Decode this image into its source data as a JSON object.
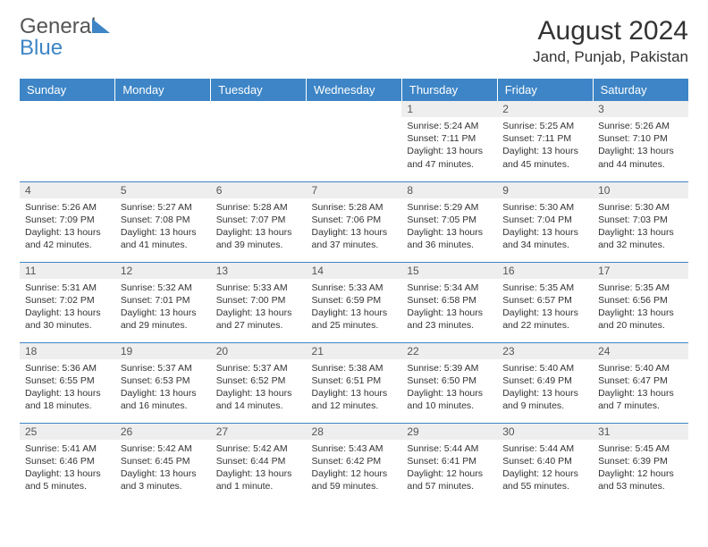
{
  "brand": {
    "part1": "General",
    "part2": "Blue"
  },
  "title": "August 2024",
  "location": "Jand, Punjab, Pakistan",
  "colors": {
    "header_bg": "#3d85c6",
    "header_fg": "#ffffff",
    "daynum_bg": "#eeeeee",
    "border": "#3d85c6",
    "text": "#333333"
  },
  "weekdays": [
    "Sunday",
    "Monday",
    "Tuesday",
    "Wednesday",
    "Thursday",
    "Friday",
    "Saturday"
  ],
  "weeks": [
    [
      {
        "n": "",
        "sr": "",
        "ss": "",
        "dl": ""
      },
      {
        "n": "",
        "sr": "",
        "ss": "",
        "dl": ""
      },
      {
        "n": "",
        "sr": "",
        "ss": "",
        "dl": ""
      },
      {
        "n": "",
        "sr": "",
        "ss": "",
        "dl": ""
      },
      {
        "n": "1",
        "sr": "Sunrise: 5:24 AM",
        "ss": "Sunset: 7:11 PM",
        "dl": "Daylight: 13 hours and 47 minutes."
      },
      {
        "n": "2",
        "sr": "Sunrise: 5:25 AM",
        "ss": "Sunset: 7:11 PM",
        "dl": "Daylight: 13 hours and 45 minutes."
      },
      {
        "n": "3",
        "sr": "Sunrise: 5:26 AM",
        "ss": "Sunset: 7:10 PM",
        "dl": "Daylight: 13 hours and 44 minutes."
      }
    ],
    [
      {
        "n": "4",
        "sr": "Sunrise: 5:26 AM",
        "ss": "Sunset: 7:09 PM",
        "dl": "Daylight: 13 hours and 42 minutes."
      },
      {
        "n": "5",
        "sr": "Sunrise: 5:27 AM",
        "ss": "Sunset: 7:08 PM",
        "dl": "Daylight: 13 hours and 41 minutes."
      },
      {
        "n": "6",
        "sr": "Sunrise: 5:28 AM",
        "ss": "Sunset: 7:07 PM",
        "dl": "Daylight: 13 hours and 39 minutes."
      },
      {
        "n": "7",
        "sr": "Sunrise: 5:28 AM",
        "ss": "Sunset: 7:06 PM",
        "dl": "Daylight: 13 hours and 37 minutes."
      },
      {
        "n": "8",
        "sr": "Sunrise: 5:29 AM",
        "ss": "Sunset: 7:05 PM",
        "dl": "Daylight: 13 hours and 36 minutes."
      },
      {
        "n": "9",
        "sr": "Sunrise: 5:30 AM",
        "ss": "Sunset: 7:04 PM",
        "dl": "Daylight: 13 hours and 34 minutes."
      },
      {
        "n": "10",
        "sr": "Sunrise: 5:30 AM",
        "ss": "Sunset: 7:03 PM",
        "dl": "Daylight: 13 hours and 32 minutes."
      }
    ],
    [
      {
        "n": "11",
        "sr": "Sunrise: 5:31 AM",
        "ss": "Sunset: 7:02 PM",
        "dl": "Daylight: 13 hours and 30 minutes."
      },
      {
        "n": "12",
        "sr": "Sunrise: 5:32 AM",
        "ss": "Sunset: 7:01 PM",
        "dl": "Daylight: 13 hours and 29 minutes."
      },
      {
        "n": "13",
        "sr": "Sunrise: 5:33 AM",
        "ss": "Sunset: 7:00 PM",
        "dl": "Daylight: 13 hours and 27 minutes."
      },
      {
        "n": "14",
        "sr": "Sunrise: 5:33 AM",
        "ss": "Sunset: 6:59 PM",
        "dl": "Daylight: 13 hours and 25 minutes."
      },
      {
        "n": "15",
        "sr": "Sunrise: 5:34 AM",
        "ss": "Sunset: 6:58 PM",
        "dl": "Daylight: 13 hours and 23 minutes."
      },
      {
        "n": "16",
        "sr": "Sunrise: 5:35 AM",
        "ss": "Sunset: 6:57 PM",
        "dl": "Daylight: 13 hours and 22 minutes."
      },
      {
        "n": "17",
        "sr": "Sunrise: 5:35 AM",
        "ss": "Sunset: 6:56 PM",
        "dl": "Daylight: 13 hours and 20 minutes."
      }
    ],
    [
      {
        "n": "18",
        "sr": "Sunrise: 5:36 AM",
        "ss": "Sunset: 6:55 PM",
        "dl": "Daylight: 13 hours and 18 minutes."
      },
      {
        "n": "19",
        "sr": "Sunrise: 5:37 AM",
        "ss": "Sunset: 6:53 PM",
        "dl": "Daylight: 13 hours and 16 minutes."
      },
      {
        "n": "20",
        "sr": "Sunrise: 5:37 AM",
        "ss": "Sunset: 6:52 PM",
        "dl": "Daylight: 13 hours and 14 minutes."
      },
      {
        "n": "21",
        "sr": "Sunrise: 5:38 AM",
        "ss": "Sunset: 6:51 PM",
        "dl": "Daylight: 13 hours and 12 minutes."
      },
      {
        "n": "22",
        "sr": "Sunrise: 5:39 AM",
        "ss": "Sunset: 6:50 PM",
        "dl": "Daylight: 13 hours and 10 minutes."
      },
      {
        "n": "23",
        "sr": "Sunrise: 5:40 AM",
        "ss": "Sunset: 6:49 PM",
        "dl": "Daylight: 13 hours and 9 minutes."
      },
      {
        "n": "24",
        "sr": "Sunrise: 5:40 AM",
        "ss": "Sunset: 6:47 PM",
        "dl": "Daylight: 13 hours and 7 minutes."
      }
    ],
    [
      {
        "n": "25",
        "sr": "Sunrise: 5:41 AM",
        "ss": "Sunset: 6:46 PM",
        "dl": "Daylight: 13 hours and 5 minutes."
      },
      {
        "n": "26",
        "sr": "Sunrise: 5:42 AM",
        "ss": "Sunset: 6:45 PM",
        "dl": "Daylight: 13 hours and 3 minutes."
      },
      {
        "n": "27",
        "sr": "Sunrise: 5:42 AM",
        "ss": "Sunset: 6:44 PM",
        "dl": "Daylight: 13 hours and 1 minute."
      },
      {
        "n": "28",
        "sr": "Sunrise: 5:43 AM",
        "ss": "Sunset: 6:42 PM",
        "dl": "Daylight: 12 hours and 59 minutes."
      },
      {
        "n": "29",
        "sr": "Sunrise: 5:44 AM",
        "ss": "Sunset: 6:41 PM",
        "dl": "Daylight: 12 hours and 57 minutes."
      },
      {
        "n": "30",
        "sr": "Sunrise: 5:44 AM",
        "ss": "Sunset: 6:40 PM",
        "dl": "Daylight: 12 hours and 55 minutes."
      },
      {
        "n": "31",
        "sr": "Sunrise: 5:45 AM",
        "ss": "Sunset: 6:39 PM",
        "dl": "Daylight: 12 hours and 53 minutes."
      }
    ]
  ]
}
